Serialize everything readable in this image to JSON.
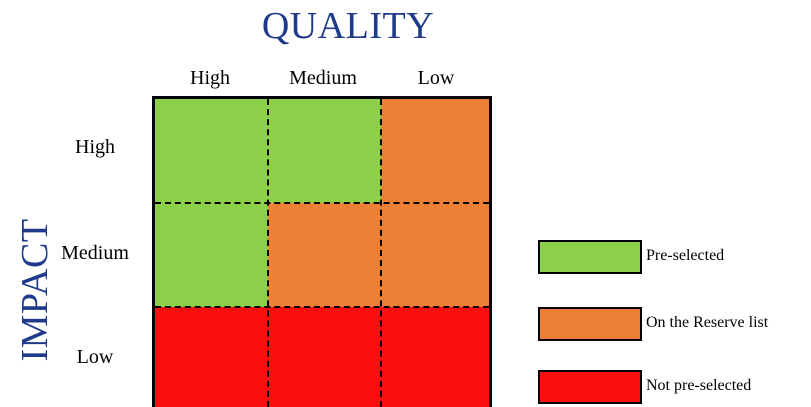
{
  "diagram": {
    "title_x": "QUALITY",
    "title_y": "IMPACT",
    "columns": [
      "High",
      "Medium",
      "Low"
    ],
    "rows": [
      "High",
      "Medium",
      "Low"
    ],
    "cells": [
      [
        "pre_selected",
        "pre_selected",
        "reserve"
      ],
      [
        "pre_selected",
        "reserve",
        "reserve"
      ],
      [
        "not_selected",
        "not_selected",
        "not_selected"
      ]
    ],
    "legend": [
      {
        "key": "pre_selected",
        "label": "Pre-selected",
        "color": "#8cd04a"
      },
      {
        "key": "reserve",
        "label": "On the Reserve list",
        "color": "#ee8035"
      },
      {
        "key": "not_selected",
        "label": "Not pre-selected",
        "color": "#fa0f0f"
      }
    ]
  }
}
